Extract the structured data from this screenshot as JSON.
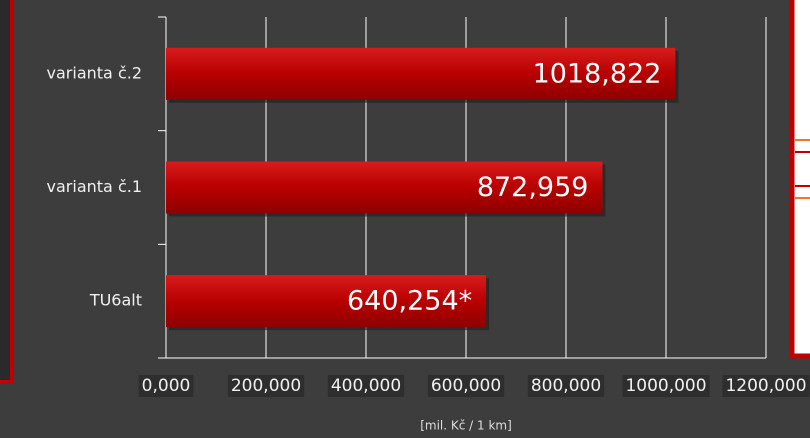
{
  "chart_data": {
    "type": "hbar",
    "x_axis_label": "[mil. Kč / 1 km]",
    "categories": [
      "varianta č.2",
      "varianta č.1",
      "TU6alt"
    ],
    "values": [
      1018.822,
      872.959,
      640.254
    ],
    "value_labels": [
      "1018,822",
      "872,959",
      "640,254*"
    ],
    "color": "#c00000",
    "xlim": [
      0,
      1200
    ],
    "xticks": [
      {
        "value": 0,
        "label": "0,000"
      },
      {
        "value": 200,
        "label": "200,000"
      },
      {
        "value": 400,
        "label": "400,000"
      },
      {
        "value": 600,
        "label": "600,000"
      },
      {
        "value": 800,
        "label": "800,000"
      },
      {
        "value": 1000,
        "label": "1000,000"
      },
      {
        "value": 1200,
        "label": "1200,000"
      }
    ],
    "grid": true
  }
}
